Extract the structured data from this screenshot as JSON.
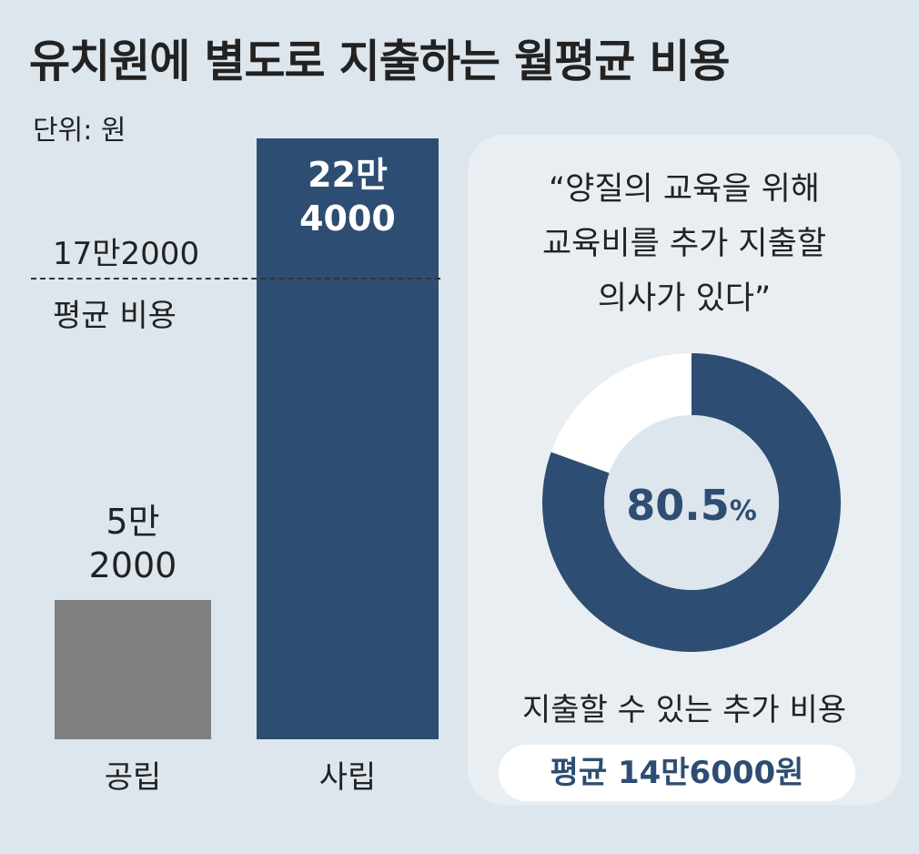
{
  "title": "유치원에 별도로 지출하는 월평균 비용",
  "unit_label": "단위: 원",
  "colors": {
    "background": "#dde5ed",
    "public_bar": "#808080",
    "private_bar": "#2e4d72",
    "donut_remainder": "#ffffff",
    "panel": "#e9eef3"
  },
  "chart_data": [
    {
      "type": "bar",
      "categories": [
        "공립",
        "사립"
      ],
      "values": [
        52000,
        224000
      ],
      "value_labels": [
        "5만\n2000",
        "22만\n4000"
      ],
      "ylim": [
        0,
        224000
      ],
      "reference_line": {
        "value": 172000,
        "value_label": "17만2000",
        "name": "평균 비용"
      }
    },
    {
      "type": "pie",
      "style": "donut",
      "caption": "“양질의 교육을 위해\n교육비를 추가 지출할\n의사가 있다”",
      "slices": [
        {
          "name": "",
          "value": 80.5
        },
        {
          "name": "",
          "value": 19.5
        }
      ],
      "center_value": "80.5",
      "center_unit": "%",
      "sub_caption": "지출할 수 있는 추가 비용",
      "summary": "평균 14만6000원"
    }
  ]
}
